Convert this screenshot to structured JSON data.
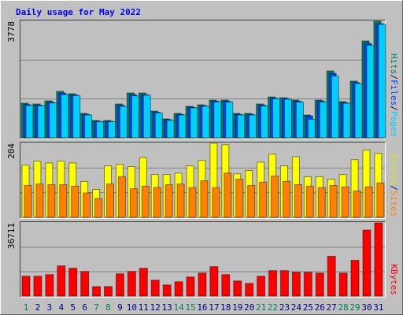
{
  "chart_data": [
    {
      "type": "bar",
      "title": "Daily usage for May 2022",
      "ylim": [
        0,
        3778
      ],
      "yticks": [
        3778
      ],
      "grid": true,
      "separator": "/",
      "series": [
        {
          "name": "Hits",
          "color": "#00805c",
          "values": [
            1123,
            1098,
            1200,
            1506,
            1430,
            791,
            562,
            562,
            1098,
            1455,
            1455,
            868,
            613,
            791,
            1021,
            1072,
            1225,
            1225,
            791,
            791,
            1098,
            1327,
            1302,
            1225,
            740,
            1225,
            2170,
            1174,
            1838,
            3140,
            3778
          ]
        },
        {
          "name": "Files",
          "color": "#0040ff",
          "values": [
            1080,
            1060,
            1160,
            1450,
            1390,
            760,
            540,
            540,
            1050,
            1400,
            1400,
            830,
            590,
            760,
            990,
            1040,
            1190,
            1190,
            760,
            760,
            1060,
            1290,
            1270,
            1190,
            710,
            1190,
            2090,
            1140,
            1790,
            3060,
            3700
          ]
        },
        {
          "name": "Pages",
          "color": "#00d0ff",
          "values": [
            1050,
            1040,
            1130,
            1400,
            1370,
            740,
            520,
            520,
            1020,
            1360,
            1380,
            810,
            570,
            740,
            970,
            1020,
            1160,
            1160,
            740,
            740,
            1030,
            1270,
            1250,
            1160,
            600,
            1160,
            2000,
            1120,
            1760,
            3000,
            3680
          ]
        }
      ]
    },
    {
      "type": "bar",
      "ylim": [
        0,
        204
      ],
      "yticks": [
        204
      ],
      "grid": true,
      "separator": "/",
      "series": [
        {
          "name": "Visits",
          "color": "#ffff00",
          "values": [
            144,
            155,
            150,
            155,
            150,
            99,
            77,
            142,
            146,
            140,
            165,
            118,
            118,
            122,
            142,
            157,
            204,
            200,
            120,
            129,
            152,
            174,
            142,
            167,
            112,
            112,
            105,
            118,
            159,
            185,
            176
          ]
        },
        {
          "name": "Sites",
          "color": "#ff8000",
          "values": [
            88,
            92,
            90,
            90,
            86,
            67,
            52,
            92,
            112,
            79,
            86,
            82,
            90,
            92,
            82,
            101,
            82,
            122,
            105,
            88,
            97,
            114,
            99,
            90,
            86,
            82,
            88,
            84,
            73,
            84,
            95
          ]
        }
      ]
    },
    {
      "type": "bar",
      "ylim": [
        0,
        36711
      ],
      "yticks": [
        36711
      ],
      "grid": true,
      "categories": [
        "1",
        "2",
        "3",
        "4",
        "5",
        "6",
        "7",
        "8",
        "9",
        "10",
        "11",
        "12",
        "13",
        "14",
        "15",
        "16",
        "17",
        "18",
        "19",
        "20",
        "21",
        "22",
        "23",
        "24",
        "25",
        "26",
        "27",
        "28",
        "29",
        "30",
        "31"
      ],
      "category_colors": [
        "#00805c",
        "#000080",
        "#000080",
        "#000080",
        "#000080",
        "#000080",
        "#00805c",
        "#00805c",
        "#000080",
        "#000080",
        "#000080",
        "#000080",
        "#000080",
        "#00805c",
        "#00805c",
        "#000080",
        "#000080",
        "#000080",
        "#000080",
        "#000080",
        "#00805c",
        "#00805c",
        "#000080",
        "#000080",
        "#000080",
        "#000080",
        "#000080",
        "#00805c",
        "#00805c",
        "#000080",
        "#000080"
      ],
      "series": [
        {
          "name": "KBytes",
          "color": "#ff0000",
          "values": [
            9976,
            9976,
            10774,
            15163,
            13966,
            12370,
            4788,
            4788,
            11173,
            12370,
            13966,
            7981,
            5586,
            7183,
            9577,
            11572,
            14764,
            10774,
            7582,
            6384,
            9976,
            12769,
            12769,
            11971,
            11971,
            11572,
            19952,
            11572,
            17957,
            33120,
            36711
          ]
        }
      ]
    }
  ]
}
